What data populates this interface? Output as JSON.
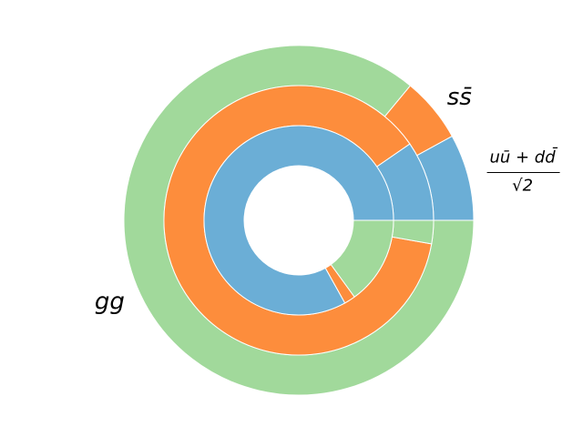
{
  "chart_data": {
    "type": "pie",
    "categories": [
      {
        "numerator": "uū + dd̄",
        "denominator": "√2"
      },
      "ss̄",
      "gg"
    ],
    "rings": [
      {
        "values": [
          8.0,
          6.0,
          86.0
        ],
        "colors": [
          "#6baed6",
          "#fd8d3c",
          "#a1d99b"
        ]
      },
      {
        "values": [
          9.6,
          87.6,
          2.8
        ],
        "colors": [
          "#6baed6",
          "#fd8d3c",
          "#a1d99b"
        ]
      },
      {
        "values": [
          83.1,
          1.9,
          15.0
        ],
        "colors": [
          "#6baed6",
          "#fd8d3c",
          "#a1d99b"
        ]
      }
    ]
  }
}
